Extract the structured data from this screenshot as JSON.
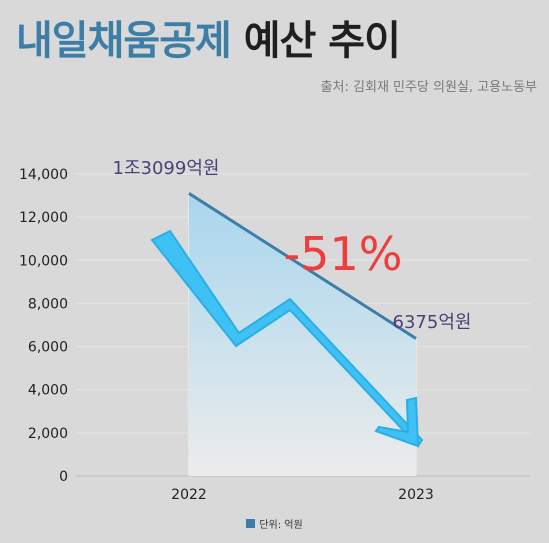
{
  "header": {
    "title_highlight": "내일채움공제",
    "title_rest": "예산 추이",
    "source": "출처: 김회재 민주당 의원실, 고용노동부"
  },
  "chart_data": {
    "type": "area",
    "categories": [
      "2022",
      "2023"
    ],
    "values": [
      13099,
      6375
    ],
    "data_labels": [
      "1조3099억원",
      "6375억원"
    ],
    "annotation": "-51%",
    "ylim": [
      0,
      14000
    ],
    "yticks": [
      "0",
      "2,000",
      "4,000",
      "6,000",
      "8,000",
      "10,000",
      "12,000",
      "14,000"
    ],
    "grid": true,
    "legend": {
      "position": "bottom",
      "label": "단위: 억원"
    }
  },
  "colors": {
    "title_accent": "#3d7ea6",
    "line": "#3d7ea6",
    "percent": "#ef3c3c",
    "label": "#4d3f78",
    "arrow": "#3fc1f5"
  },
  "icons": [
    "down-trend-arrow-icon"
  ]
}
